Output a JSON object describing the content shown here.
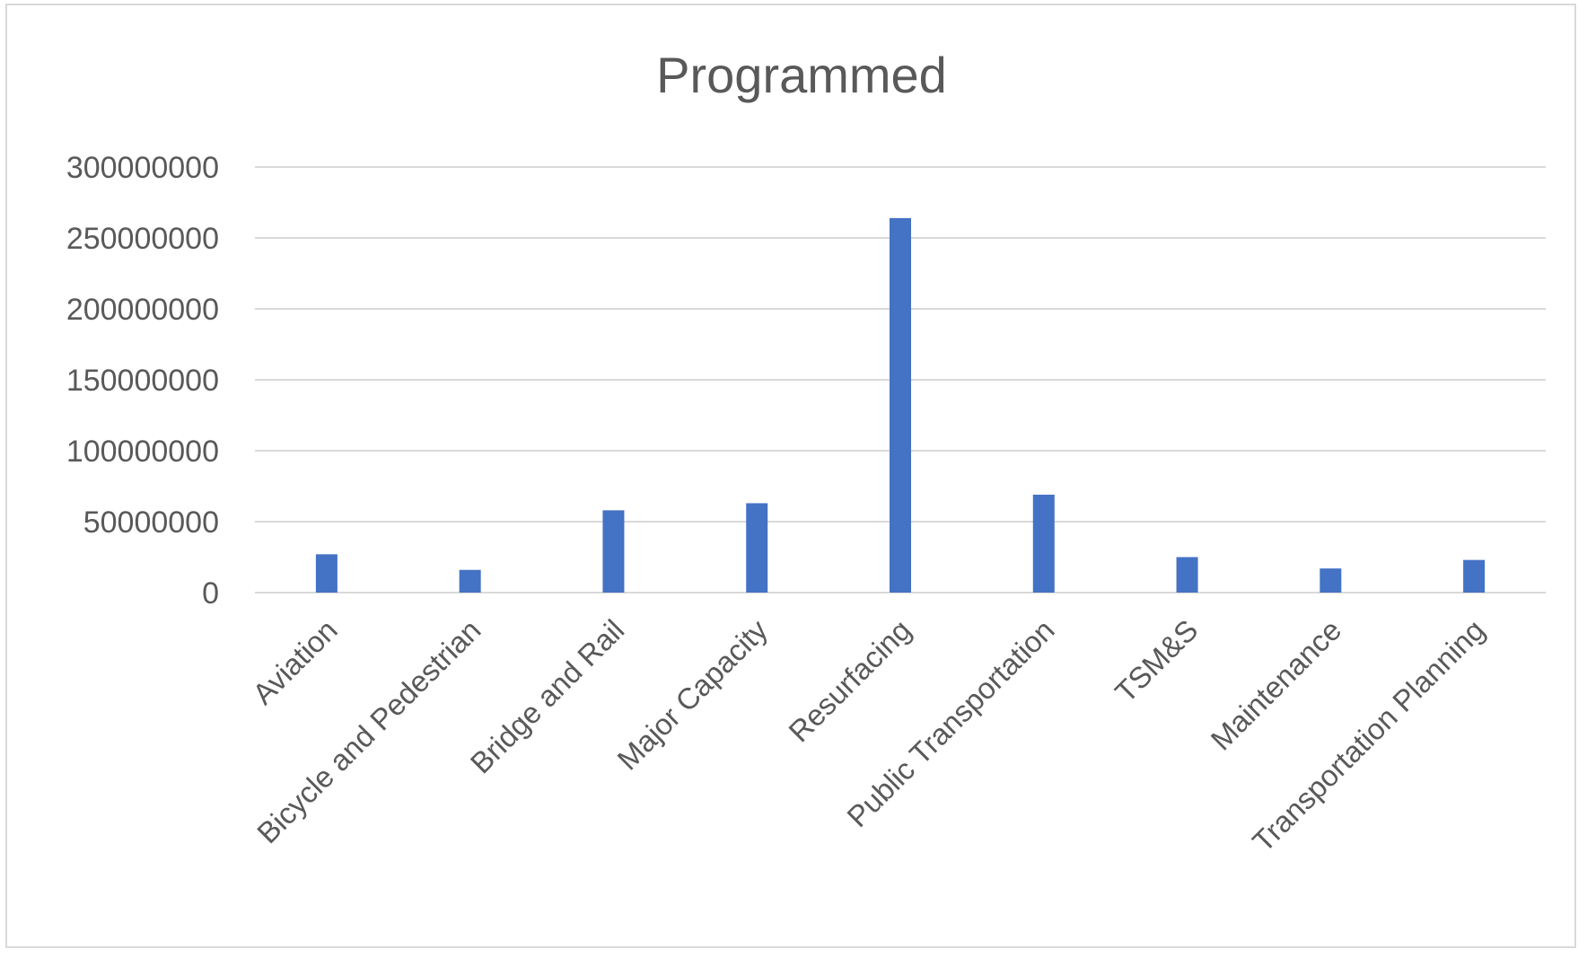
{
  "chart_data": {
    "type": "bar",
    "title": "Programmed",
    "xlabel": "",
    "ylabel": "",
    "ylim": [
      0,
      300000000
    ],
    "yticks": [
      0,
      50000000,
      100000000,
      150000000,
      200000000,
      250000000,
      300000000
    ],
    "ytick_labels": [
      "0",
      "50000000",
      "100000000",
      "150000000",
      "200000000",
      "250000000",
      "300000000"
    ],
    "grid": true,
    "legend": "none",
    "color": "#4472c4",
    "categories": [
      "Aviation",
      "Bicycle and Pedestrian",
      "Bridge and Rail",
      "Major Capacity",
      "Resurfacing",
      "Public Transportation",
      "TSM&S",
      "Maintenance",
      "Transportation Planning"
    ],
    "values": [
      27000000,
      16000000,
      58000000,
      63000000,
      264000000,
      69000000,
      25000000,
      17000000,
      23000000
    ]
  }
}
